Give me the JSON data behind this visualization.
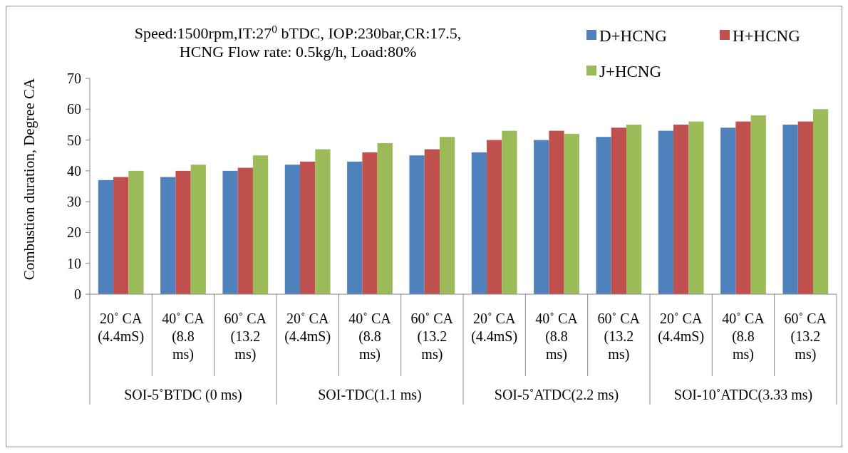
{
  "chart_data": {
    "type": "bar",
    "title": "Speed:1500rpm,IT:27$^{0}$ bTDC, IOP:230bar,CR:17.5, HCNG Flow rate: 0.5kg/h, Load:80%",
    "ylabel": "Combustion duration, Degree CA",
    "categories": [
      "20˚ CA (4.4mS)",
      "40˚ CA (8.8 ms)",
      "60˚ CA (13.2 ms)",
      "20˚ CA (4.4mS)",
      "40˚ CA (8.8 ms)",
      "60˚ CA (13.2 ms)",
      "20˚ CA (4.4mS)",
      "40˚ CA (8.8 ms)",
      "60˚ CA (13.2 ms)",
      "20˚ CA (4.4mS)",
      "40˚ CA (8.8 ms)",
      "60˚ CA (13.2 ms)"
    ],
    "annotations": [
      "SOI-5˚BTDC (0 ms)",
      "SOI-TDC(1.1 ms)",
      "SOI-5˚ATDC(2.2 ms)",
      "SOI-10˚ATDC(3.33 ms)"
    ],
    "series": [
      {
        "name": "D+HCNG",
        "color": "#4f81bd",
        "values": [
          37,
          38,
          40,
          42,
          43,
          45,
          46,
          50,
          51,
          53,
          54,
          55
        ]
      },
      {
        "name": "H+HCNG",
        "color": "#c0504d",
        "values": [
          38,
          40,
          41,
          43,
          46,
          47,
          50,
          53,
          54,
          55,
          56,
          56
        ]
      },
      {
        "name": "J+HCNG",
        "color": "#9bbb59",
        "values": [
          40,
          42,
          45,
          47,
          49,
          51,
          53,
          52,
          55,
          56,
          58,
          60
        ]
      }
    ],
    "ylim": [
      0,
      70
    ],
    "yticks": [
      0,
      10,
      20,
      30,
      40,
      50,
      60,
      70
    ],
    "grid": false,
    "legend": "top right"
  }
}
